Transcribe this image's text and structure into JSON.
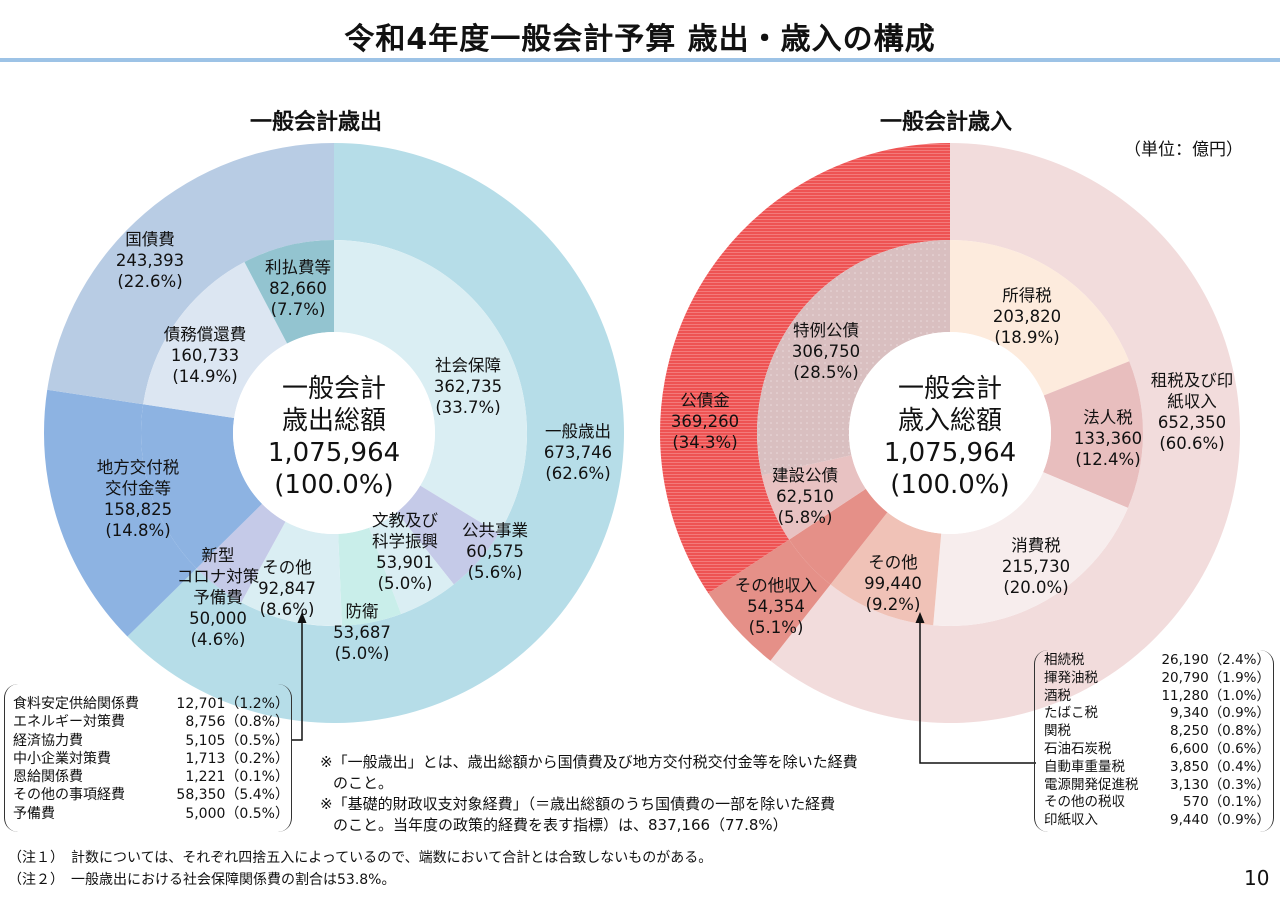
{
  "title": "令和4年度一般会計予算 歳出・歳入の構成",
  "unit": "（単位：億円）",
  "page_number": "10",
  "chart_data": [
    {
      "type": "pie",
      "variant": "nested-donut",
      "title": "一般会計歳出",
      "center": {
        "line1": "一般会計",
        "line2": "歳出総額",
        "total": "1,075,964",
        "pct": "(100.0%)"
      },
      "outer": [
        {
          "id": "ippan",
          "name": "一般歳出",
          "value": 673746,
          "value_label": "673,746",
          "pct": "(62.6%)",
          "color": "#B6DDE8"
        },
        {
          "id": "chiho",
          "name": "地方交付税\n交付金等",
          "value": 158825,
          "value_label": "158,825",
          "pct": "(14.8%)",
          "color": "#8DB3E2"
        },
        {
          "id": "kokusai",
          "name": "国債費",
          "value": 243393,
          "value_label": "243,393",
          "pct": "(22.6%)",
          "color": "#B8CCE4"
        }
      ],
      "inner": [
        {
          "id": "shakai",
          "name": "社会保障",
          "value": 362735,
          "value_label": "362,735",
          "pct": "(33.7%)",
          "color": "#DAEEF3"
        },
        {
          "id": "kokyo",
          "name": "公共事業",
          "value": 60575,
          "value_label": "60,575",
          "pct": "(5.6%)",
          "color": "#C5CAE8"
        },
        {
          "id": "bunkyo",
          "name": "文教及び\n科学振興",
          "value": 53901,
          "value_label": "53,901",
          "pct": "(5.0%)",
          "color": "#DAEEF3"
        },
        {
          "id": "boei",
          "name": "防衛",
          "value": 53687,
          "value_label": "53,687",
          "pct": "(5.0%)",
          "color": "#C9EEEA"
        },
        {
          "id": "sonota",
          "name": "その他",
          "value": 92847,
          "value_label": "92,847",
          "pct": "(8.6%)",
          "color": "#DAEEF3"
        },
        {
          "id": "corona",
          "name": "新型\nコロナ対策\n予備費",
          "value": 50000,
          "value_label": "50,000",
          "pct": "(4.6%)",
          "color": "#C5CAE8"
        },
        {
          "id": "chiho_in",
          "name": "",
          "value": 158825,
          "color": "#8DB3E2"
        },
        {
          "id": "saimu",
          "name": "債務償還費",
          "value": 160733,
          "value_label": "160,733",
          "pct": "(14.9%)",
          "color": "#DCE6F2"
        },
        {
          "id": "ribarai",
          "name": "利払費等",
          "value": 82660,
          "value_label": "82,660",
          "pct": "(7.7%)",
          "color": "#93C4D0"
        }
      ],
      "breakdown_of": "その他",
      "breakdown": [
        {
          "name": "食料安定供給関係費",
          "value": "12,701",
          "pct": "（1.2%）"
        },
        {
          "name": "エネルギー対策費",
          "value": "8,756",
          "pct": "（0.8%）"
        },
        {
          "name": "経済協力費",
          "value": "5,105",
          "pct": "（0.5%）"
        },
        {
          "name": "中小企業対策費",
          "value": "1,713",
          "pct": "（0.2%）"
        },
        {
          "name": "恩給関係費",
          "value": "1,221",
          "pct": "（0.1%）"
        },
        {
          "name": "その他の事項経費",
          "value": "58,350",
          "pct": "（5.4%）"
        },
        {
          "name": "予備費",
          "value": "5,000",
          "pct": "（0.5%）"
        }
      ]
    },
    {
      "type": "pie",
      "variant": "nested-donut",
      "title": "一般会計歳入",
      "center": {
        "line1": "一般会計",
        "line2": "歳入総額",
        "total": "1,075,964",
        "pct": "(100.0%)"
      },
      "outer": [
        {
          "id": "sozei",
          "name": "租税及び印紙収入",
          "value": 652350,
          "value_label": "652,350",
          "pct": "(60.6%)",
          "color": "#F2DCDC"
        },
        {
          "id": "sonotashu",
          "name": "その他収入",
          "value": 54354,
          "value_label": "54,354",
          "pct": "(5.1%)",
          "color": "#E59088"
        },
        {
          "id": "kousai",
          "name": "公債金",
          "value": 369260,
          "value_label": "369,260",
          "pct": "(34.3%)",
          "color": "#EE5353",
          "pattern": "horizontal-stripes"
        }
      ],
      "inner": [
        {
          "id": "shotoku",
          "name": "所得税",
          "value": 203820,
          "value_label": "203,820",
          "pct": "(18.9%)",
          "color": "#FDEBDD"
        },
        {
          "id": "hojin",
          "name": "法人税",
          "value": 133360,
          "value_label": "133,360",
          "pct": "(12.4%)",
          "color": "#E8BEBE"
        },
        {
          "id": "shohi",
          "name": "消費税",
          "value": 215730,
          "value_label": "215,730",
          "pct": "(20.0%)",
          "color": "#F7EDED"
        },
        {
          "id": "sonota_r",
          "name": "その他",
          "value": 99440,
          "value_label": "99,440",
          "pct": "(9.2%)",
          "color": "#F0C2B7"
        },
        {
          "id": "sonotashu_in",
          "name": "",
          "value": 54354,
          "color": "#E59088"
        },
        {
          "id": "kensetsu",
          "name": "建設公債",
          "value": 62510,
          "value_label": "62,510",
          "pct": "(5.8%)",
          "color": "#E8C2C2"
        },
        {
          "id": "tokurei",
          "name": "特例公債",
          "value": 306750,
          "value_label": "306,750",
          "pct": "(28.5%)",
          "color": "#D9BFC0",
          "pattern": "dots"
        }
      ],
      "breakdown_of": "その他",
      "breakdown": [
        {
          "name": "相続税",
          "value": "26,190",
          "pct": "（2.4%）"
        },
        {
          "name": "揮発油税",
          "value": "20,790",
          "pct": "（1.9%）"
        },
        {
          "name": "酒税",
          "value": "11,280",
          "pct": "（1.0%）"
        },
        {
          "name": "たばこ税",
          "value": "9,340",
          "pct": "（0.9%）"
        },
        {
          "name": "関税",
          "value": "8,250",
          "pct": "（0.8%）"
        },
        {
          "name": "石油石炭税",
          "value": "6,600",
          "pct": "（0.6%）"
        },
        {
          "name": "自動車重量税",
          "value": "3,850",
          "pct": "（0.4%）"
        },
        {
          "name": "電源開発促進税",
          "value": "3,130",
          "pct": "（0.3%）"
        },
        {
          "name": "その他の税収",
          "value": "570",
          "pct": "（0.1%）"
        },
        {
          "name": "印紙収入",
          "value": "9,440",
          "pct": "（0.9%）"
        }
      ]
    }
  ],
  "notes": {
    "asterisk1_line1": "※「一般歳出」とは、歳出総額から国債費及び地方交付税交付金等を除いた経費",
    "asterisk1_line2": "のこと。",
    "asterisk2_line1": "※「基礎的財政収支対象経費」（＝歳出総額のうち国債費の一部を除いた経費",
    "asterisk2_line2": "のこと。当年度の政策的経費を表す指標）は、837,166（77.8%）",
    "note1": "（注１）　計数については、それぞれ四捨五入によっているので、端数において合計とは合致しないものがある。",
    "note2": "（注２）　一般歳出における社会保障関係費の割合は53.8%。"
  }
}
